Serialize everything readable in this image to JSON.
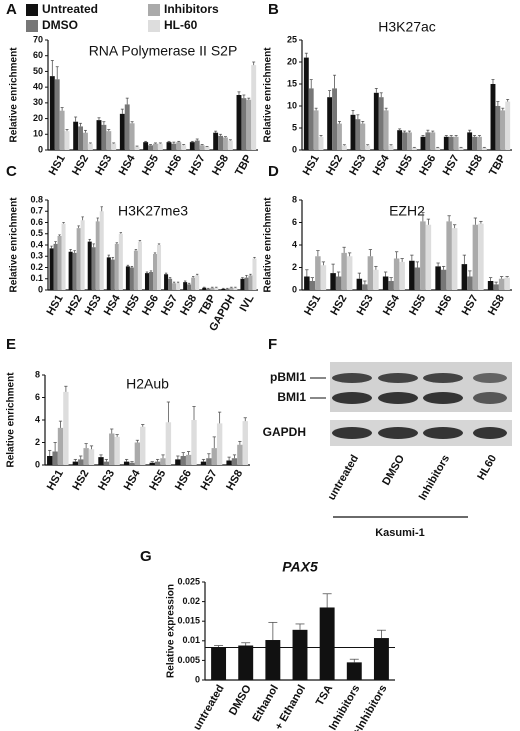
{
  "chart_data": [
    {
      "panel": "A",
      "type": "bar",
      "title": "RNA Polymerase  II S2P",
      "ylabel": "Relative enrichment",
      "categories": [
        "HS1",
        "HS2",
        "HS3",
        "HS4",
        "HS5",
        "HS6",
        "HS7",
        "HS8",
        "TBP"
      ],
      "ylim": [
        0,
        70
      ],
      "yticks": [
        0,
        10,
        20,
        30,
        40,
        50,
        60,
        70
      ],
      "series": [
        {
          "name": "Untreated",
          "color": "#111111",
          "values": [
            47,
            18,
            19,
            23,
            5,
            5,
            5,
            11,
            35
          ],
          "errors": [
            10,
            3,
            1.5,
            3,
            0.5,
            0.5,
            0.5,
            1,
            2
          ]
        },
        {
          "name": "DMSO",
          "color": "#777777",
          "values": [
            45,
            15,
            16,
            29,
            3,
            4,
            6,
            9,
            33
          ],
          "errors": [
            8,
            2,
            2,
            4,
            0.5,
            1,
            1,
            1,
            2
          ]
        },
        {
          "name": "Inhibitors",
          "color": "#aaaaaa",
          "values": [
            25,
            11,
            12,
            17,
            4,
            5,
            3,
            8,
            32
          ],
          "errors": [
            2,
            1.5,
            1,
            1,
            0.5,
            0.5,
            0.5,
            0.5,
            1
          ]
        },
        {
          "name": "HL-60",
          "color": "#dddddd",
          "values": [
            12,
            4,
            4,
            2,
            4,
            3,
            2,
            6,
            54
          ],
          "errors": [
            1,
            0.5,
            0.5,
            0.5,
            0.5,
            0.5,
            0.3,
            0.5,
            2
          ]
        }
      ]
    },
    {
      "panel": "B",
      "type": "bar",
      "title": "H3K27ac",
      "ylabel": "Relative enrichment",
      "categories": [
        "HS1",
        "HS2",
        "HS3",
        "HS4",
        "HS5",
        "HS6",
        "HS7",
        "HS8",
        "TBP"
      ],
      "ylim": [
        0,
        25
      ],
      "yticks": [
        0,
        5,
        10,
        15,
        20,
        25
      ],
      "series": [
        {
          "color": "#111111",
          "values": [
            21,
            12,
            8,
            13,
            4.5,
            3,
            3,
            4,
            15
          ],
          "errors": [
            1,
            1.5,
            1,
            1,
            0.3,
            0.3,
            0.3,
            0.5,
            1
          ]
        },
        {
          "color": "#777777",
          "values": [
            14,
            14,
            7,
            12,
            4,
            4,
            3,
            3,
            10
          ],
          "errors": [
            2,
            3,
            1,
            1,
            0.3,
            0.5,
            0.3,
            0.3,
            1
          ]
        },
        {
          "color": "#aaaaaa",
          "values": [
            9,
            6,
            6,
            9,
            4,
            4,
            3,
            3,
            9
          ],
          "errors": [
            0.5,
            0.5,
            0.5,
            0.5,
            0.3,
            0.3,
            0.3,
            0.3,
            0.5
          ]
        },
        {
          "color": "#dddddd",
          "values": [
            3,
            1,
            1,
            1,
            0.5,
            0.5,
            0.5,
            0.5,
            11
          ],
          "errors": [
            0.3,
            0.2,
            0.2,
            0.2,
            0.1,
            0.1,
            0.1,
            0.1,
            0.5
          ]
        }
      ]
    },
    {
      "panel": "C",
      "type": "bar",
      "title": "H3K27me3",
      "ylabel": "Relative enrichment",
      "categories": [
        "HS1",
        "HS2",
        "HS3",
        "HS4",
        "HS5",
        "HS6",
        "HS7",
        "HS8",
        "TBP",
        "GAPDH",
        "IVL"
      ],
      "ylim": [
        0,
        0.8
      ],
      "yticks": [
        0,
        0.1,
        0.2,
        0.3,
        0.4,
        0.5,
        0.6,
        0.7,
        0.8
      ],
      "series": [
        {
          "color": "#111111",
          "values": [
            0.37,
            0.34,
            0.43,
            0.29,
            0.21,
            0.15,
            0.14,
            0.07,
            0.02,
            0.01,
            0.1
          ],
          "errors": [
            0.02,
            0.02,
            0.02,
            0.02,
            0.01,
            0.01,
            0.01,
            0.01,
            0.005,
            0.005,
            0.01
          ]
        },
        {
          "color": "#777777",
          "values": [
            0.41,
            0.33,
            0.38,
            0.27,
            0.2,
            0.16,
            0.1,
            0.05,
            0.01,
            0.01,
            0.11
          ],
          "errors": [
            0.02,
            0.02,
            0.03,
            0.02,
            0.01,
            0.01,
            0.01,
            0.01,
            0.005,
            0.005,
            0.02
          ]
        },
        {
          "color": "#aaaaaa",
          "values": [
            0.48,
            0.55,
            0.61,
            0.41,
            0.35,
            0.32,
            0.06,
            0.11,
            0.02,
            0.02,
            0.13
          ],
          "errors": [
            0.01,
            0.02,
            0.03,
            0.01,
            0.01,
            0.01,
            0.01,
            0.01,
            0.005,
            0.005,
            0.01
          ]
        },
        {
          "color": "#dddddd",
          "values": [
            0.59,
            0.62,
            0.7,
            0.5,
            0.43,
            0.4,
            0.06,
            0.13,
            0.02,
            0.02,
            0.28
          ],
          "errors": [
            0.01,
            0.03,
            0.04,
            0.01,
            0.01,
            0.01,
            0.01,
            0.01,
            0.005,
            0.005,
            0.01
          ]
        }
      ]
    },
    {
      "panel": "D",
      "type": "bar",
      "title": "EZH2",
      "ylabel": "Relative enrichment",
      "categories": [
        "HS1",
        "HS2",
        "HS3",
        "HS4",
        "HS5",
        "HS6",
        "HS7",
        "HS8"
      ],
      "ylim": [
        0,
        8
      ],
      "yticks": [
        0,
        2,
        4,
        6,
        8
      ],
      "series": [
        {
          "color": "#111111",
          "values": [
            1.2,
            1.5,
            1,
            1.2,
            2.6,
            2.1,
            2.3,
            0.8
          ],
          "errors": [
            0.6,
            0.8,
            0.5,
            0.4,
            0.5,
            0.3,
            0.8,
            0.3
          ]
        },
        {
          "color": "#777777",
          "values": [
            0.8,
            1.2,
            0.5,
            0.8,
            2,
            1.8,
            1.2,
            0.5
          ],
          "errors": [
            0.3,
            0.4,
            0.3,
            0.3,
            0.5,
            0.3,
            0.5,
            0.2
          ]
        },
        {
          "color": "#aaaaaa",
          "values": [
            3,
            3.3,
            3,
            2.8,
            6.1,
            6.1,
            5.8,
            1
          ],
          "errors": [
            0.5,
            0.5,
            0.6,
            0.6,
            0.8,
            0.5,
            0.6,
            0.2
          ]
        },
        {
          "color": "#dddddd",
          "values": [
            2.2,
            3,
            1.8,
            2.5,
            5.8,
            5.5,
            5.9,
            1.1
          ],
          "errors": [
            0.3,
            0.3,
            0.3,
            0.3,
            0.5,
            0.3,
            0.2,
            0.1
          ]
        }
      ]
    },
    {
      "panel": "E",
      "type": "bar",
      "title": "H2Aub",
      "ylabel": "Relative enrichment",
      "categories": [
        "HS1",
        "HS2",
        "HS3",
        "HS4",
        "HS5",
        "HS6",
        "HS7",
        "HS8"
      ],
      "ylim": [
        0,
        8
      ],
      "yticks": [
        0,
        2,
        4,
        6,
        8
      ],
      "series": [
        {
          "color": "#111111",
          "values": [
            0.8,
            0.3,
            0.7,
            0.3,
            0.2,
            0.5,
            0.3,
            0.4
          ],
          "errors": [
            0.5,
            0.2,
            0.2,
            0.2,
            0.1,
            0.3,
            0.2,
            0.3
          ]
        },
        {
          "color": "#777777",
          "values": [
            1.2,
            0.5,
            0.3,
            0.2,
            0.3,
            0.8,
            0.6,
            0.6
          ],
          "errors": [
            0.8,
            0.3,
            0.2,
            0.1,
            0.2,
            0.3,
            0.4,
            0.3
          ]
        },
        {
          "color": "#aaaaaa",
          "values": [
            3.3,
            1.5,
            2.8,
            2,
            0.6,
            0.9,
            1.5,
            1.8
          ],
          "errors": [
            0.6,
            0.4,
            0.4,
            0.2,
            0.3,
            0.3,
            1,
            0.3
          ]
        },
        {
          "color": "#dddddd",
          "values": [
            6.5,
            1.4,
            2.5,
            3.4,
            3.8,
            4,
            3.7,
            3.9
          ],
          "errors": [
            0.5,
            0.3,
            0.2,
            0.2,
            1.8,
            1.2,
            1,
            0.3
          ]
        }
      ]
    },
    {
      "panel": "F",
      "type": "blot",
      "bands": [
        "pBMI1",
        "BMI1",
        "GAPDH"
      ],
      "lanes": [
        "untreated",
        "DMSO",
        "Inhibitors",
        "HL60"
      ],
      "group": "Kasumi-1"
    },
    {
      "panel": "G",
      "type": "bar",
      "title": "PAX5",
      "ylabel": "Relative expression",
      "categories": [
        "untreated",
        "DMSO",
        "Ethanol",
        "DMSO + Ethanol",
        "TSA",
        "Inhibitors",
        "TSA+Inhibitors"
      ],
      "ylim": [
        0,
        0.025
      ],
      "yticks": [
        0,
        0.005,
        0.01,
        0.015,
        0.02,
        0.025
      ],
      "color": "#111111",
      "values": [
        0.0083,
        0.0088,
        0.0102,
        0.0128,
        0.0185,
        0.0045,
        0.0107
      ],
      "errors": [
        0.0005,
        0.0007,
        0.0045,
        0.0015,
        0.0035,
        0.0008,
        0.002
      ],
      "reference_line": 0.0083
    }
  ]
}
